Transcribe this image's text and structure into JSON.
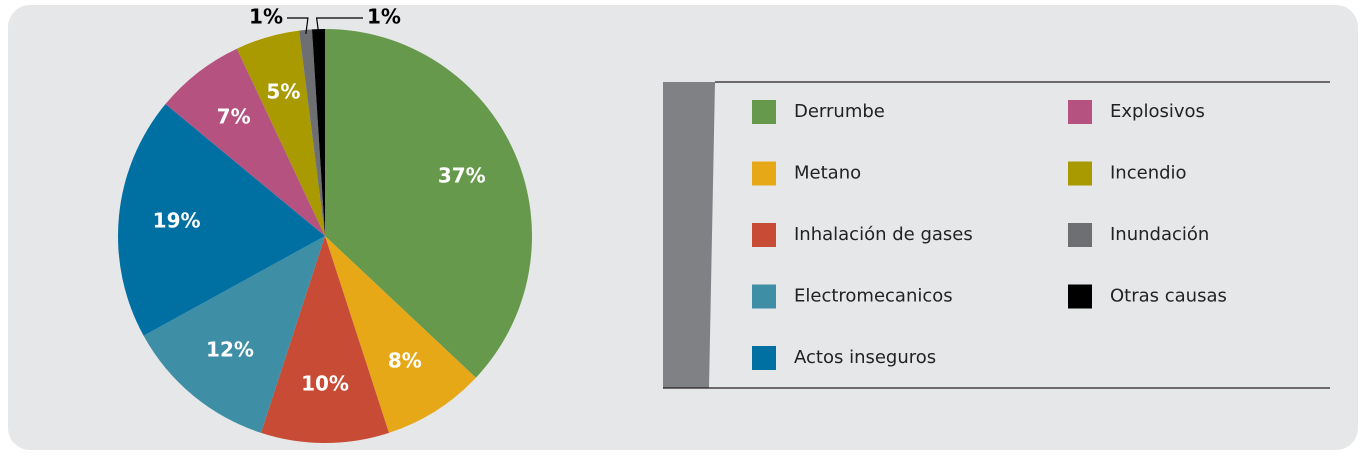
{
  "chart_data": {
    "type": "pie",
    "categories": [
      "Derrumbe",
      "Metano",
      "Inhalación de gases",
      "Electromecanicos",
      "Actos inseguros",
      "Explosivos",
      "Incendio",
      "Inundación",
      "Otras causas"
    ],
    "values": [
      37,
      8,
      10,
      12,
      19,
      7,
      5,
      1,
      1
    ],
    "value_labels": [
      "37%",
      "8%",
      "10%",
      "12%",
      "19%",
      "7%",
      "5%",
      "1%",
      "1%"
    ],
    "colors": [
      "#66994c",
      "#e6a817",
      "#c84b35",
      "#3e8fa6",
      "#0070a3",
      "#b5527f",
      "#a89a00",
      "#6e6f73",
      "#000000"
    ]
  }
}
